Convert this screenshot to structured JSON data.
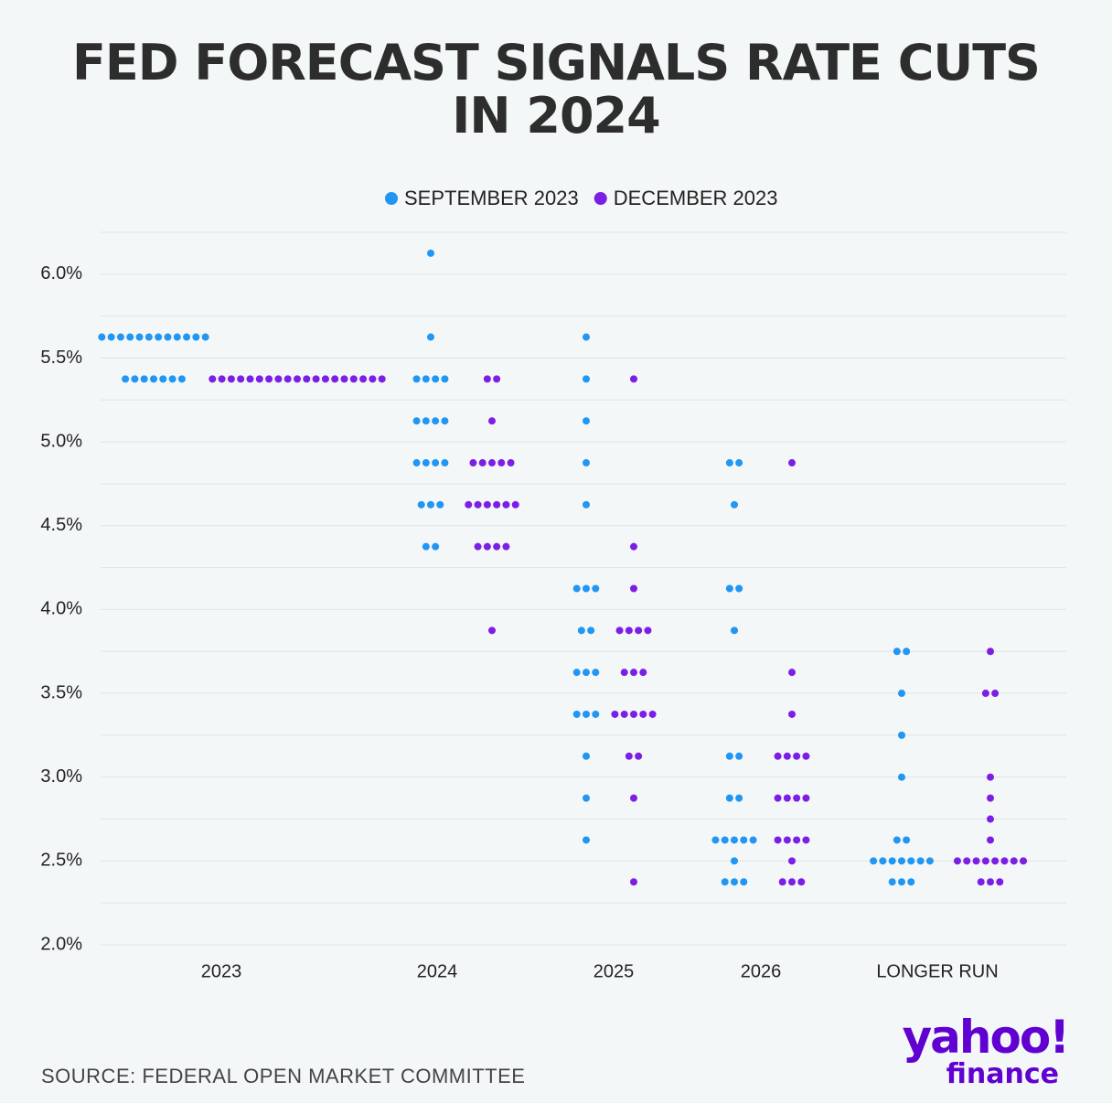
{
  "chart_data": {
    "type": "dotplot",
    "title": "FED FORECAST SIGNALS RATE CUTS IN 2024",
    "categories": [
      "2023",
      "2024",
      "2025",
      "2026",
      "LONGER RUN"
    ],
    "ylim": [
      2.0,
      6.25
    ],
    "yticks": [
      {
        "value": 2.0,
        "label": "2.0%"
      },
      {
        "value": 2.5,
        "label": "2.5%"
      },
      {
        "value": 3.0,
        "label": "3.0%"
      },
      {
        "value": 3.5,
        "label": "3.5%"
      },
      {
        "value": 4.0,
        "label": "4.0%"
      },
      {
        "value": 4.5,
        "label": "4.5%"
      },
      {
        "value": 5.0,
        "label": "5.0%"
      },
      {
        "value": 5.5,
        "label": "5.5%"
      },
      {
        "value": 6.0,
        "label": "6.0%"
      }
    ],
    "minor_yticks": [
      2.25,
      2.75,
      3.25,
      3.75,
      4.25,
      4.75,
      5.25,
      5.75,
      6.25
    ],
    "grid": true,
    "legend": "top",
    "series": [
      {
        "name": "SEPTEMBER 2023",
        "color": "#2196f3",
        "values": [
          [
            {
              "rate": 5.625,
              "count": 12
            },
            {
              "rate": 5.375,
              "count": 7
            }
          ],
          [
            {
              "rate": 6.125,
              "count": 1
            },
            {
              "rate": 5.625,
              "count": 1
            },
            {
              "rate": 5.375,
              "count": 4
            },
            {
              "rate": 5.125,
              "count": 4
            },
            {
              "rate": 4.875,
              "count": 4
            },
            {
              "rate": 4.625,
              "count": 3
            },
            {
              "rate": 4.375,
              "count": 2
            }
          ],
          [
            {
              "rate": 5.625,
              "count": 1
            },
            {
              "rate": 5.375,
              "count": 1
            },
            {
              "rate": 5.125,
              "count": 1
            },
            {
              "rate": 4.875,
              "count": 1
            },
            {
              "rate": 4.625,
              "count": 1
            },
            {
              "rate": 4.125,
              "count": 3
            },
            {
              "rate": 3.875,
              "count": 2
            },
            {
              "rate": 3.625,
              "count": 3
            },
            {
              "rate": 3.375,
              "count": 3
            },
            {
              "rate": 3.125,
              "count": 1
            },
            {
              "rate": 2.875,
              "count": 1
            },
            {
              "rate": 2.625,
              "count": 1
            }
          ],
          [
            {
              "rate": 4.875,
              "count": 2
            },
            {
              "rate": 4.625,
              "count": 1
            },
            {
              "rate": 4.125,
              "count": 2
            },
            {
              "rate": 3.875,
              "count": 1
            },
            {
              "rate": 3.125,
              "count": 2
            },
            {
              "rate": 2.875,
              "count": 2
            },
            {
              "rate": 2.625,
              "count": 5
            },
            {
              "rate": 2.5,
              "count": 1
            },
            {
              "rate": 2.375,
              "count": 3
            }
          ],
          [
            {
              "rate": 3.75,
              "count": 2
            },
            {
              "rate": 3.5,
              "count": 1
            },
            {
              "rate": 3.25,
              "count": 1
            },
            {
              "rate": 3.0,
              "count": 1
            },
            {
              "rate": 2.625,
              "count": 2
            },
            {
              "rate": 2.5,
              "count": 7
            },
            {
              "rate": 2.375,
              "count": 3
            }
          ]
        ]
      },
      {
        "name": "DECEMBER 2023",
        "color": "#7c1fe6",
        "values": [
          [
            {
              "rate": 5.375,
              "count": 19
            }
          ],
          [
            {
              "rate": 5.375,
              "count": 2
            },
            {
              "rate": 5.125,
              "count": 1
            },
            {
              "rate": 4.875,
              "count": 5
            },
            {
              "rate": 4.625,
              "count": 6
            },
            {
              "rate": 4.375,
              "count": 4
            },
            {
              "rate": 3.875,
              "count": 1
            }
          ],
          [
            {
              "rate": 5.375,
              "count": 1
            },
            {
              "rate": 4.375,
              "count": 1
            },
            {
              "rate": 4.125,
              "count": 1
            },
            {
              "rate": 3.875,
              "count": 4
            },
            {
              "rate": 3.625,
              "count": 3
            },
            {
              "rate": 3.375,
              "count": 5
            },
            {
              "rate": 3.125,
              "count": 2
            },
            {
              "rate": 2.875,
              "count": 1
            },
            {
              "rate": 2.375,
              "count": 1
            }
          ],
          [
            {
              "rate": 4.875,
              "count": 1
            },
            {
              "rate": 3.625,
              "count": 1
            },
            {
              "rate": 3.375,
              "count": 1
            },
            {
              "rate": 3.125,
              "count": 4
            },
            {
              "rate": 2.875,
              "count": 4
            },
            {
              "rate": 2.625,
              "count": 4
            },
            {
              "rate": 2.5,
              "count": 1
            },
            {
              "rate": 2.375,
              "count": 3
            }
          ],
          [
            {
              "rate": 3.75,
              "count": 1
            },
            {
              "rate": 3.5,
              "count": 2
            },
            {
              "rate": 3.0,
              "count": 1
            },
            {
              "rate": 2.875,
              "count": 1
            },
            {
              "rate": 2.75,
              "count": 1
            },
            {
              "rate": 2.625,
              "count": 1
            },
            {
              "rate": 2.5,
              "count": 8
            },
            {
              "rate": 2.375,
              "count": 3
            }
          ]
        ]
      }
    ]
  },
  "source": "SOURCE: FEDERAL OPEN MARKET COMMITTEE",
  "logo": {
    "brand": "yahoo!",
    "product": "finance"
  }
}
